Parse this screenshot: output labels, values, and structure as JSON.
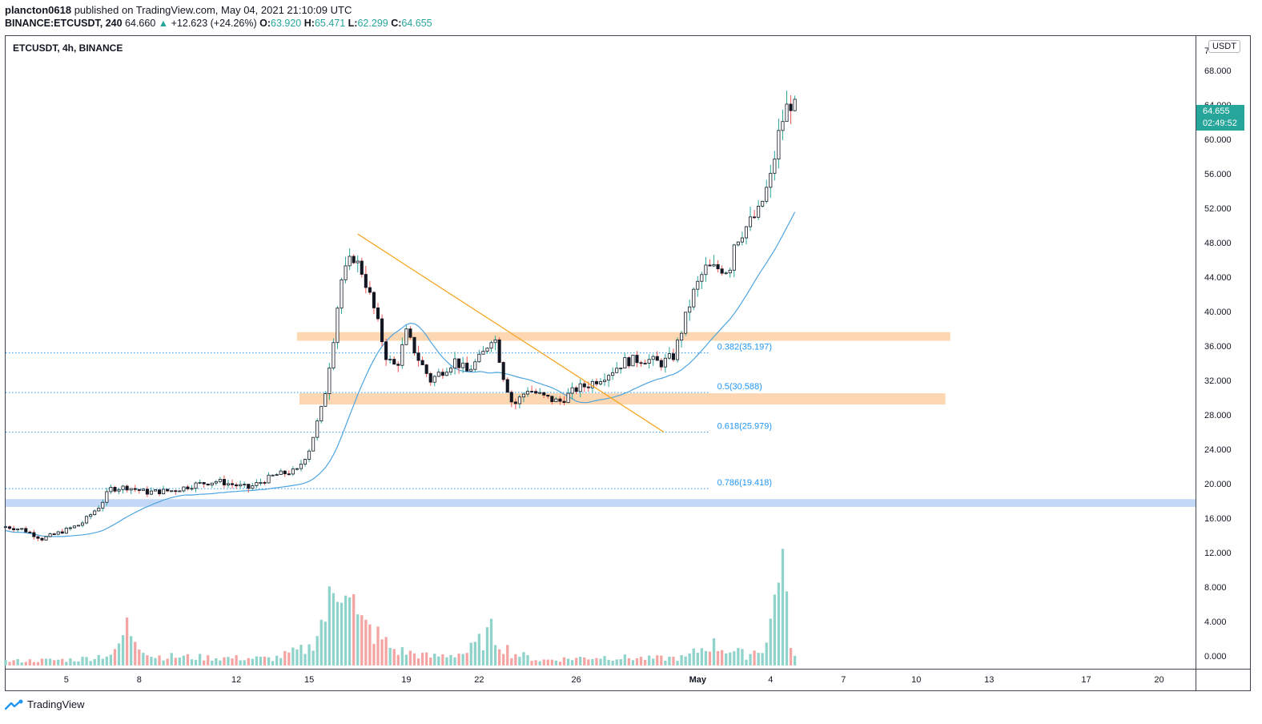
{
  "header": {
    "author": "plancton0618",
    "published_text": " published on TradingView.com, May 04, 2021 21:10:09 UTC",
    "symbol_line": "BINANCE:ETCUSDT, 240",
    "last": "64.660",
    "change": "+12.623 (+24.26%)",
    "o_label": "O:",
    "o_value": "63.920",
    "h_label": "H:",
    "h_value": "65.471",
    "l_label": "L:",
    "l_value": "62.299",
    "c_label": "C:",
    "c_value": "64.655"
  },
  "pane_title": "ETCUSDT, 4h, BINANCE",
  "price_scale": {
    "unit": "USDT",
    "top_label": "7",
    "current_price": "64.655",
    "countdown": "02:49:52"
  },
  "footer": {
    "brand": "TradingView"
  },
  "colors": {
    "up": "#26a69a",
    "down": "#ef5350",
    "ma": "#4ea5e0",
    "trendline": "#f5a623",
    "zone": "#fcd3a9",
    "support": "#bcd3f5",
    "fib": "#2196f3"
  },
  "chart_data": {
    "type": "candlestick",
    "title": "ETCUSDT, 4h, BINANCE",
    "ylim": [
      -1.5,
      72
    ],
    "yticks": [
      "68.000",
      "64.000",
      "60.000",
      "56.000",
      "52.000",
      "48.000",
      "44.000",
      "40.000",
      "36.000",
      "32.000",
      "28.000",
      "24.000",
      "20.000",
      "16.000",
      "12.000",
      "8.000",
      "4.000",
      "0.000"
    ],
    "ytick_values": [
      68,
      64,
      60,
      56,
      52,
      48,
      44,
      40,
      36,
      32,
      28,
      24,
      20,
      16,
      12,
      8,
      4,
      0
    ],
    "xticks": [
      "5",
      "8",
      "12",
      "15",
      "19",
      "22",
      "26",
      "May",
      "4",
      "7",
      "10",
      "13",
      "17",
      "20"
    ],
    "xtick_days": [
      5,
      8,
      12,
      15,
      19,
      22,
      26,
      31,
      34,
      37,
      40,
      43,
      47,
      50
    ],
    "x_domain_days": [
      2.5,
      51.5
    ],
    "candle_days": [
      2.5,
      35.0
    ],
    "candle_count": 196,
    "fib_levels": [
      {
        "label": "0.382(35.197)",
        "value": 35.197
      },
      {
        "label": "0.5(30.588)",
        "value": 30.588
      },
      {
        "label": "0.618(25.979)",
        "value": 25.979
      },
      {
        "label": "0.786(19.418)",
        "value": 19.418
      }
    ],
    "zones": [
      {
        "name": "resistance",
        "low": 36.6,
        "high": 37.6,
        "from_day": 14.5,
        "to_day": 41.4
      },
      {
        "name": "support-mid",
        "low": 29.2,
        "high": 30.5,
        "from_day": 14.6,
        "to_day": 41.2
      },
      {
        "name": "support-low",
        "low": 17.3,
        "high": 18.2,
        "from_day": 2.5,
        "to_day": 51.5
      }
    ],
    "trendline": {
      "from_day": 17.0,
      "from_value": 49.0,
      "to_day": 29.6,
      "to_value": 26.0
    },
    "price_anchors": [
      [
        2.5,
        15.0
      ],
      [
        3.2,
        14.7
      ],
      [
        4.0,
        13.6
      ],
      [
        4.6,
        14.2
      ],
      [
        5.6,
        15.3
      ],
      [
        6.4,
        17.5
      ],
      [
        6.8,
        19.4
      ],
      [
        7.5,
        19.6
      ],
      [
        8.3,
        19.0
      ],
      [
        9.4,
        19.2
      ],
      [
        10.3,
        19.9
      ],
      [
        11.2,
        20.3
      ],
      [
        12.0,
        19.8
      ],
      [
        12.5,
        19.5
      ],
      [
        13.6,
        21.0
      ],
      [
        14.5,
        21.5
      ],
      [
        15.0,
        24.0
      ],
      [
        15.6,
        29.5
      ],
      [
        16.0,
        37.0
      ],
      [
        16.3,
        43.5
      ],
      [
        16.8,
        46.5
      ],
      [
        17.2,
        44.5
      ],
      [
        17.7,
        40.0
      ],
      [
        18.2,
        34.5
      ],
      [
        18.6,
        33.5
      ],
      [
        19.0,
        37.5
      ],
      [
        19.5,
        34.5
      ],
      [
        20.0,
        32.0
      ],
      [
        21.0,
        34.3
      ],
      [
        21.5,
        33.0
      ],
      [
        22.1,
        34.8
      ],
      [
        22.6,
        37.5
      ],
      [
        23.0,
        32.5
      ],
      [
        23.4,
        29.0
      ],
      [
        24.0,
        31.0
      ],
      [
        24.7,
        30.0
      ],
      [
        25.3,
        29.5
      ],
      [
        26.0,
        31.0
      ],
      [
        26.5,
        31.5
      ],
      [
        27.3,
        32.8
      ],
      [
        28.0,
        34.2
      ],
      [
        28.8,
        34.5
      ],
      [
        29.5,
        34.0
      ],
      [
        30.0,
        34.8
      ],
      [
        30.3,
        37.5
      ],
      [
        30.8,
        42.0
      ],
      [
        31.3,
        45.0
      ],
      [
        32.0,
        45.0
      ],
      [
        32.3,
        44.8
      ],
      [
        32.5,
        48.0
      ],
      [
        32.9,
        49.5
      ],
      [
        33.5,
        51.5
      ],
      [
        34.0,
        55.5
      ],
      [
        34.4,
        61.5
      ],
      [
        34.7,
        63.9
      ],
      [
        35.0,
        64.655
      ]
    ],
    "volume_anchors": [
      [
        2.5,
        0.5
      ],
      [
        5.5,
        0.7
      ],
      [
        7.0,
        1.4
      ],
      [
        7.5,
        4.5
      ],
      [
        8.5,
        1.1
      ],
      [
        11.0,
        0.9
      ],
      [
        13.5,
        0.8
      ],
      [
        15.0,
        2.0
      ],
      [
        16.1,
        8.5
      ],
      [
        16.5,
        12.0
      ],
      [
        17.0,
        5.0
      ],
      [
        17.8,
        3.5
      ],
      [
        18.5,
        1.8
      ],
      [
        20.0,
        1.0
      ],
      [
        21.5,
        1.5
      ],
      [
        22.5,
        3.8
      ],
      [
        23.3,
        1.5
      ],
      [
        24.5,
        0.6
      ],
      [
        27.0,
        1.0
      ],
      [
        29.0,
        0.8
      ],
      [
        30.5,
        0.9
      ],
      [
        31.5,
        2.5
      ],
      [
        32.3,
        1.8
      ],
      [
        33.0,
        1.2
      ],
      [
        33.8,
        2.3
      ],
      [
        34.1,
        6.0
      ],
      [
        34.4,
        15.5
      ],
      [
        34.7,
        5.0
      ],
      [
        35.0,
        1.0
      ]
    ],
    "volume_scale_max": 17.5,
    "ma_label": "MA",
    "series": [
      {
        "name": "ETCUSDT",
        "kind": "candles"
      },
      {
        "name": "",
        "kind": "moving_average"
      },
      {
        "name": "",
        "kind": "volume"
      }
    ]
  }
}
